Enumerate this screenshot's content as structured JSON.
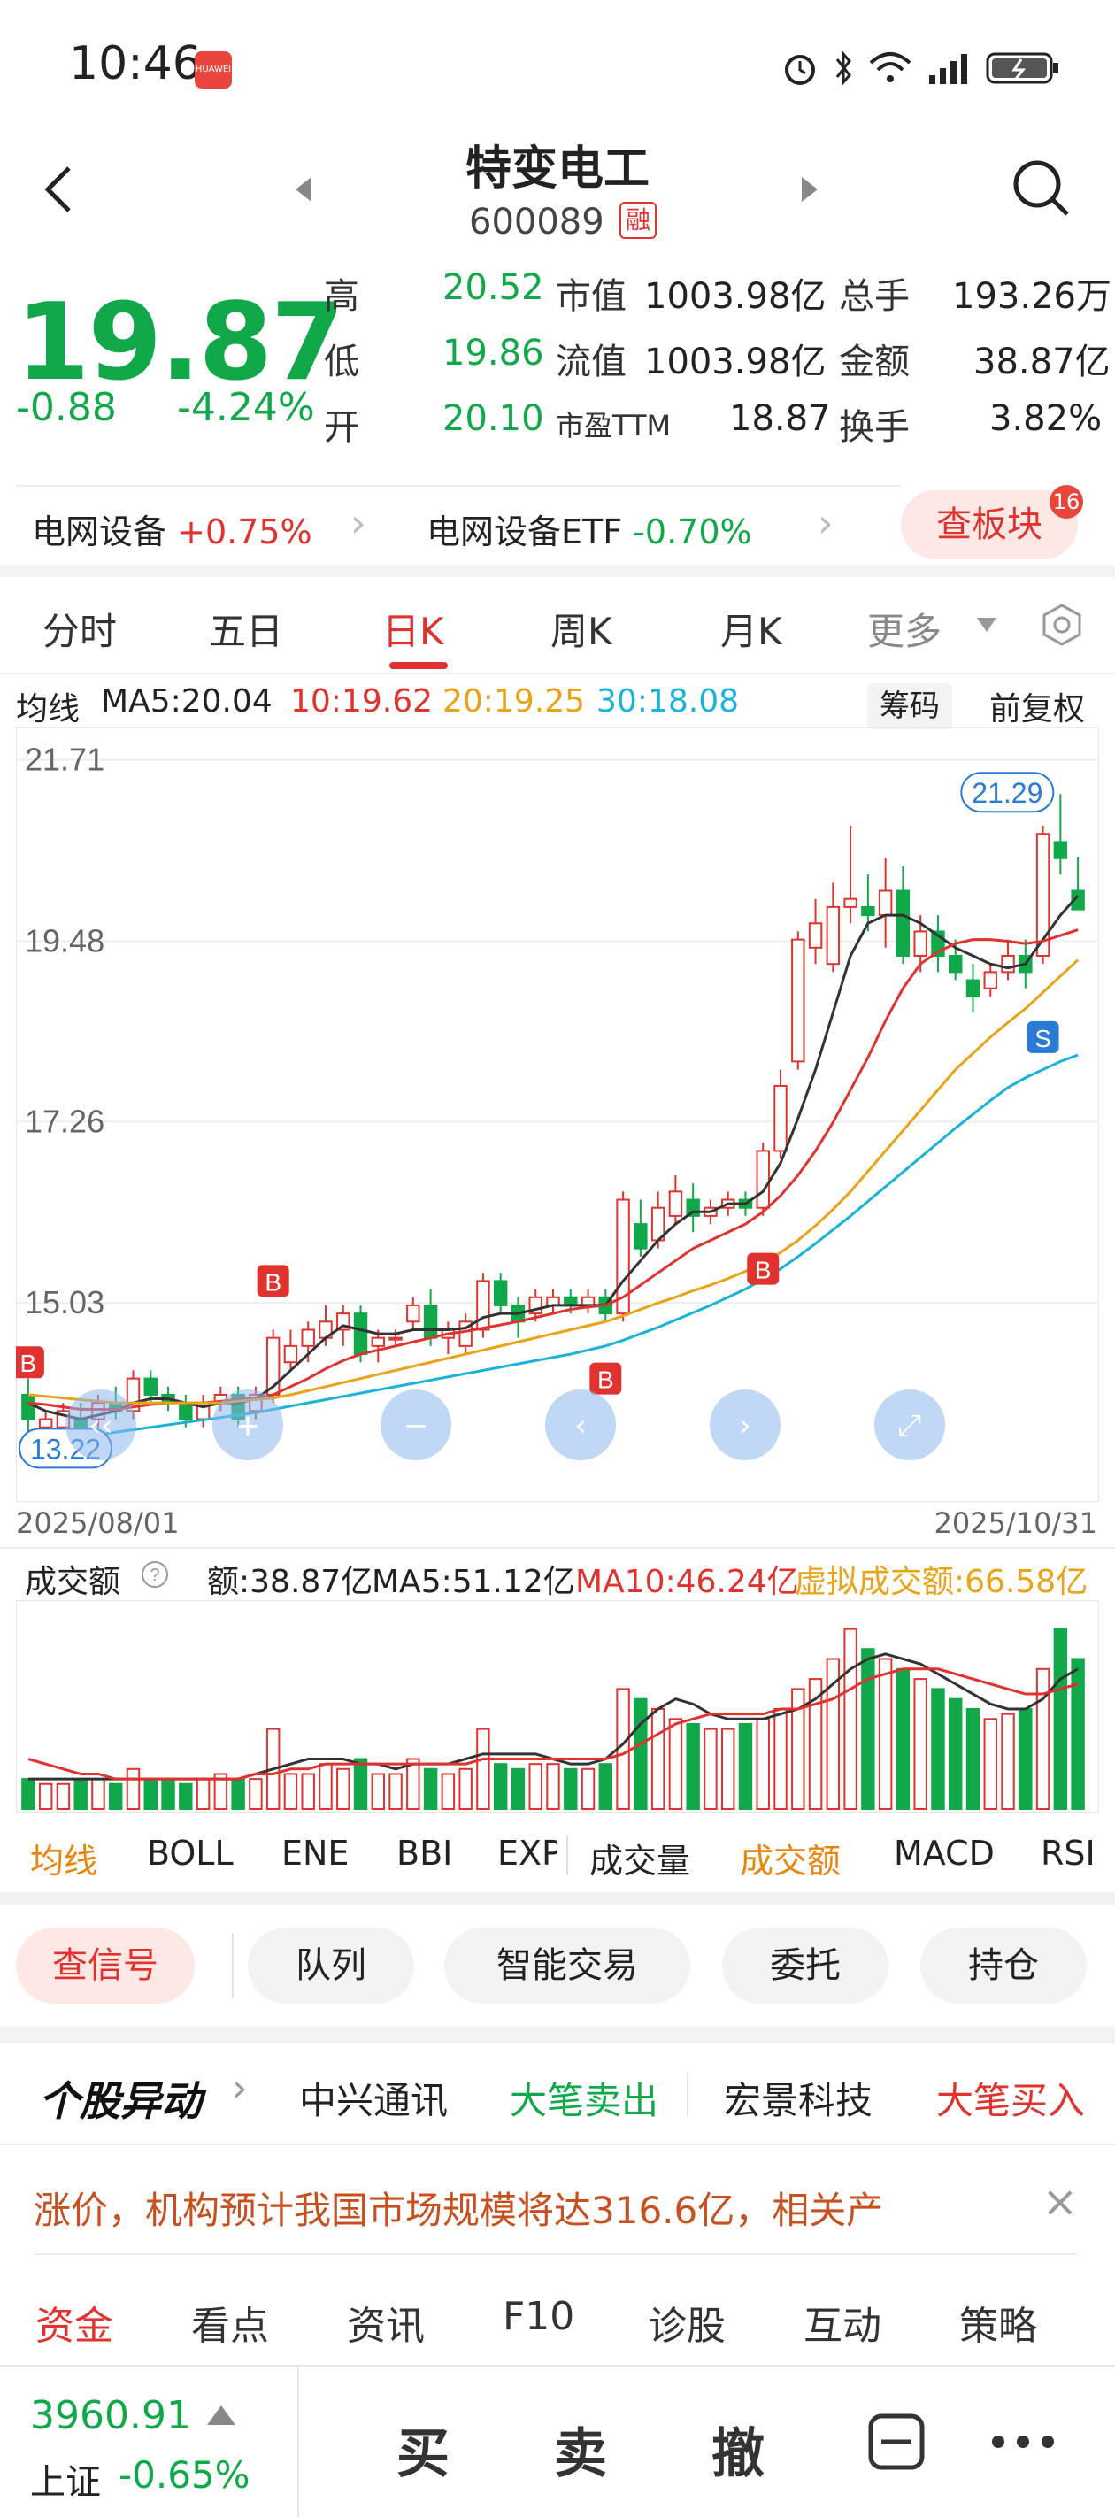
{
  "status_bar": {
    "time": "10:46",
    "badge": "HUAWEI"
  },
  "header": {
    "title": "特变电工",
    "code": "600089",
    "tag": "融"
  },
  "quote": {
    "price": "19.87",
    "change": "-0.88",
    "change_pct": "-4.24%",
    "rows": [
      [
        {
          "k": "高",
          "v": "20.52"
        },
        {
          "k": "市值",
          "v": "1003.98亿"
        },
        {
          "k": "总手",
          "v": "193.26万"
        }
      ],
      [
        {
          "k": "低",
          "v": "19.86"
        },
        {
          "k": "流值",
          "v": "1003.98亿"
        },
        {
          "k": "金额",
          "v": "38.87亿"
        }
      ],
      [
        {
          "k": "开",
          "v": "20.10"
        },
        {
          "k": "市盈TTM",
          "v": "18.87"
        },
        {
          "k": "换手",
          "v": "3.82%"
        }
      ]
    ]
  },
  "sectors": [
    {
      "name": "电网设备",
      "chg": "+0.75%"
    },
    {
      "name": "电网设备ETF",
      "chg": "-0.70%"
    }
  ],
  "board_button": "查板块",
  "board_badge": "16",
  "period_tabs": [
    "分时",
    "五日",
    "日K",
    "周K",
    "月K",
    "更多"
  ],
  "ma_legend": {
    "label": "均线",
    "ma5": "MA5:20.04",
    "ma10": "10:19.62",
    "ma20": "20:19.25",
    "ma30": "30:18.08",
    "btn_chip": "筹码",
    "btn_adjust": "前复权"
  },
  "chart_data": {
    "type": "candlestick",
    "y_ticks": [
      "21.71",
      "19.48",
      "17.26",
      "15.03"
    ],
    "ylim": [
      12.8,
      22.0
    ],
    "high_label": "21.29",
    "low_label": "13.22",
    "date_start": "2025/08/01",
    "date_end": "2025/10/31",
    "markers": [
      "B",
      "B",
      "B",
      "B",
      "S"
    ],
    "candles": [
      {
        "o": 13.9,
        "c": 13.6,
        "h": 14.1,
        "l": 13.3
      },
      {
        "o": 13.5,
        "c": 13.6,
        "h": 13.7,
        "l": 13.4
      },
      {
        "o": 13.5,
        "c": 13.7,
        "h": 13.8,
        "l": 13.4
      },
      {
        "o": 13.6,
        "c": 13.5,
        "h": 13.8,
        "l": 13.3
      },
      {
        "o": 13.6,
        "c": 13.8,
        "h": 13.9,
        "l": 13.5
      },
      {
        "o": 13.8,
        "c": 13.7,
        "h": 14.0,
        "l": 13.6
      },
      {
        "o": 13.7,
        "c": 14.1,
        "h": 14.2,
        "l": 13.6
      },
      {
        "o": 14.1,
        "c": 13.9,
        "h": 14.2,
        "l": 13.8
      },
      {
        "o": 13.9,
        "c": 13.8,
        "h": 14.0,
        "l": 13.7
      },
      {
        "o": 13.8,
        "c": 13.6,
        "h": 13.9,
        "l": 13.5
      },
      {
        "o": 13.6,
        "c": 13.8,
        "h": 13.9,
        "l": 13.5
      },
      {
        "o": 13.8,
        "c": 13.9,
        "h": 14.0,
        "l": 13.7
      },
      {
        "o": 13.9,
        "c": 13.6,
        "h": 14.0,
        "l": 13.5
      },
      {
        "o": 13.7,
        "c": 13.9,
        "h": 14.0,
        "l": 13.6
      },
      {
        "o": 13.9,
        "c": 14.6,
        "h": 14.7,
        "l": 13.8
      },
      {
        "o": 14.3,
        "c": 14.5,
        "h": 14.7,
        "l": 14.2
      },
      {
        "o": 14.5,
        "c": 14.7,
        "h": 14.8,
        "l": 14.3
      },
      {
        "o": 14.6,
        "c": 14.8,
        "h": 15.0,
        "l": 14.5
      },
      {
        "o": 14.7,
        "c": 14.9,
        "h": 15.0,
        "l": 14.5
      },
      {
        "o": 14.9,
        "c": 14.4,
        "h": 15.0,
        "l": 14.3
      },
      {
        "o": 14.5,
        "c": 14.6,
        "h": 14.7,
        "l": 14.3
      },
      {
        "o": 14.6,
        "c": 14.6,
        "h": 14.7,
        "l": 14.5
      },
      {
        "o": 14.8,
        "c": 15.0,
        "h": 15.1,
        "l": 14.7
      },
      {
        "o": 15.0,
        "c": 14.6,
        "h": 15.2,
        "l": 14.5
      },
      {
        "o": 14.6,
        "c": 14.7,
        "h": 14.8,
        "l": 14.4
      },
      {
        "o": 14.5,
        "c": 14.8,
        "h": 14.9,
        "l": 14.4
      },
      {
        "o": 14.7,
        "c": 15.3,
        "h": 15.4,
        "l": 14.6
      },
      {
        "o": 15.3,
        "c": 15.0,
        "h": 15.4,
        "l": 14.9
      },
      {
        "o": 15.0,
        "c": 14.8,
        "h": 15.1,
        "l": 14.6
      },
      {
        "o": 14.9,
        "c": 15.1,
        "h": 15.2,
        "l": 14.8
      },
      {
        "o": 15.0,
        "c": 15.1,
        "h": 15.2,
        "l": 14.9
      },
      {
        "o": 15.1,
        "c": 15.0,
        "h": 15.2,
        "l": 14.9
      },
      {
        "o": 15.0,
        "c": 15.1,
        "h": 15.2,
        "l": 14.9
      },
      {
        "o": 15.1,
        "c": 14.9,
        "h": 15.2,
        "l": 14.8
      },
      {
        "o": 14.9,
        "c": 16.3,
        "h": 16.4,
        "l": 14.8
      },
      {
        "o": 16.0,
        "c": 15.7,
        "h": 16.3,
        "l": 15.6
      },
      {
        "o": 15.8,
        "c": 16.2,
        "h": 16.4,
        "l": 15.7
      },
      {
        "o": 16.1,
        "c": 16.4,
        "h": 16.6,
        "l": 16.0
      },
      {
        "o": 16.3,
        "c": 16.1,
        "h": 16.5,
        "l": 15.9
      },
      {
        "o": 16.1,
        "c": 16.2,
        "h": 16.3,
        "l": 16.0
      },
      {
        "o": 16.2,
        "c": 16.3,
        "h": 16.4,
        "l": 16.1
      },
      {
        "o": 16.3,
        "c": 16.2,
        "h": 16.4,
        "l": 16.1
      },
      {
        "o": 16.2,
        "c": 16.9,
        "h": 17.0,
        "l": 16.1
      },
      {
        "o": 16.9,
        "c": 17.7,
        "h": 17.9,
        "l": 16.8
      },
      {
        "o": 18.0,
        "c": 19.5,
        "h": 19.6,
        "l": 17.9
      },
      {
        "o": 19.4,
        "c": 19.7,
        "h": 20.0,
        "l": 19.2
      },
      {
        "o": 19.2,
        "c": 19.9,
        "h": 20.2,
        "l": 19.1
      },
      {
        "o": 19.9,
        "c": 20.0,
        "h": 20.9,
        "l": 19.7
      },
      {
        "o": 19.9,
        "c": 19.8,
        "h": 20.3,
        "l": 19.6
      },
      {
        "o": 19.8,
        "c": 20.1,
        "h": 20.5,
        "l": 19.4
      },
      {
        "o": 20.1,
        "c": 19.3,
        "h": 20.4,
        "l": 19.2
      },
      {
        "o": 19.3,
        "c": 19.6,
        "h": 19.8,
        "l": 19.1
      },
      {
        "o": 19.6,
        "c": 19.3,
        "h": 19.8,
        "l": 19.1
      },
      {
        "o": 19.3,
        "c": 19.1,
        "h": 19.5,
        "l": 19.0
      },
      {
        "o": 19.0,
        "c": 18.8,
        "h": 19.2,
        "l": 18.6
      },
      {
        "o": 18.9,
        "c": 19.1,
        "h": 19.2,
        "l": 18.8
      },
      {
        "o": 19.1,
        "c": 19.3,
        "h": 19.5,
        "l": 19.0
      },
      {
        "o": 19.3,
        "c": 19.1,
        "h": 19.5,
        "l": 18.9
      },
      {
        "o": 19.3,
        "c": 20.8,
        "h": 20.9,
        "l": 19.2
      },
      {
        "o": 20.7,
        "c": 20.5,
        "h": 21.29,
        "l": 20.3
      },
      {
        "o": 20.1,
        "c": 19.87,
        "h": 20.52,
        "l": 19.86
      }
    ],
    "ma5": [
      13.8,
      13.7,
      13.65,
      13.6,
      13.65,
      13.7,
      13.8,
      13.85,
      13.85,
      13.8,
      13.75,
      13.8,
      13.8,
      13.85,
      14.0,
      14.2,
      14.4,
      14.6,
      14.75,
      14.7,
      14.65,
      14.65,
      14.7,
      14.7,
      14.7,
      14.72,
      14.85,
      14.9,
      14.9,
      14.95,
      15.0,
      15.0,
      15.0,
      15.0,
      15.3,
      15.55,
      15.8,
      16.0,
      16.15,
      16.15,
      16.25,
      16.25,
      16.4,
      16.75,
      17.3,
      17.9,
      18.6,
      19.3,
      19.7,
      19.8,
      19.8,
      19.7,
      19.55,
      19.4,
      19.3,
      19.2,
      19.15,
      19.2,
      19.5,
      19.8,
      20.04
    ],
    "ma10": [
      13.8,
      13.78,
      13.75,
      13.72,
      13.72,
      13.72,
      13.75,
      13.78,
      13.8,
      13.8,
      13.8,
      13.82,
      13.84,
      13.86,
      13.9,
      14.0,
      14.1,
      14.22,
      14.32,
      14.4,
      14.45,
      14.5,
      14.55,
      14.6,
      14.65,
      14.68,
      14.72,
      14.76,
      14.8,
      14.85,
      14.9,
      14.95,
      14.98,
      15.0,
      15.1,
      15.25,
      15.4,
      15.55,
      15.7,
      15.8,
      15.9,
      16.0,
      16.15,
      16.35,
      16.6,
      16.9,
      17.25,
      17.65,
      18.05,
      18.5,
      18.9,
      19.2,
      19.35,
      19.45,
      19.5,
      19.5,
      19.48,
      19.45,
      19.48,
      19.55,
      19.62
    ],
    "ma20": [
      13.9,
      13.88,
      13.86,
      13.84,
      13.82,
      13.8,
      13.8,
      13.8,
      13.8,
      13.8,
      13.8,
      13.8,
      13.82,
      13.84,
      13.86,
      13.9,
      13.95,
      14.0,
      14.05,
      14.1,
      14.15,
      14.2,
      14.25,
      14.3,
      14.35,
      14.4,
      14.45,
      14.5,
      14.55,
      14.6,
      14.65,
      14.7,
      14.75,
      14.8,
      14.87,
      14.95,
      15.03,
      15.1,
      15.18,
      15.25,
      15.33,
      15.42,
      15.52,
      15.65,
      15.8,
      15.98,
      16.18,
      16.4,
      16.65,
      16.9,
      17.15,
      17.4,
      17.65,
      17.9,
      18.1,
      18.3,
      18.48,
      18.65,
      18.85,
      19.05,
      19.25
    ],
    "ma30": [
      13.3,
      13.32,
      13.35,
      13.38,
      13.41,
      13.44,
      13.47,
      13.5,
      13.53,
      13.56,
      13.59,
      13.62,
      13.65,
      13.68,
      13.72,
      13.76,
      13.8,
      13.84,
      13.88,
      13.92,
      13.96,
      14.0,
      14.04,
      14.08,
      14.12,
      14.16,
      14.2,
      14.24,
      14.28,
      14.32,
      14.36,
      14.4,
      14.45,
      14.5,
      14.57,
      14.65,
      14.73,
      14.82,
      14.91,
      15.0,
      15.1,
      15.2,
      15.32,
      15.45,
      15.6,
      15.76,
      15.93,
      16.1,
      16.28,
      16.46,
      16.64,
      16.82,
      17.0,
      17.18,
      17.35,
      17.52,
      17.68,
      17.8,
      17.9,
      18.0,
      18.08
    ]
  },
  "volume": {
    "label": "成交额",
    "amount": "额:38.87亿",
    "ma5": "MA5:51.12亿",
    "ma10": "MA10:46.24亿",
    "virtual": "虚拟成交额:66.58亿",
    "values": [
      6,
      5,
      5,
      6,
      6,
      5,
      8,
      6,
      6,
      5,
      6,
      7,
      6,
      6,
      16,
      7,
      7,
      9,
      8,
      10,
      7,
      7,
      10,
      8,
      7,
      8,
      16,
      9,
      8,
      9,
      9,
      8,
      8,
      9,
      24,
      22,
      20,
      18,
      17,
      16,
      16,
      17,
      18,
      20,
      24,
      26,
      30,
      36,
      32,
      30,
      28,
      26,
      24,
      22,
      20,
      18,
      19,
      20,
      28,
      36,
      30
    ],
    "ma5_line": [
      6,
      6,
      6,
      6,
      6,
      6,
      6,
      6,
      6,
      6,
      6,
      6,
      6,
      7,
      8,
      9,
      10,
      10,
      10,
      9,
      9,
      8,
      9,
      9,
      9,
      10,
      11,
      11,
      11,
      11,
      10,
      9,
      9,
      10,
      13,
      17,
      20,
      22,
      21,
      19,
      18,
      18,
      18,
      19,
      20,
      22,
      25,
      28,
      30,
      31,
      30,
      29,
      27,
      25,
      23,
      21,
      20,
      20,
      22,
      26,
      28
    ],
    "ma10_line": [
      10,
      9,
      8,
      7,
      7,
      6,
      6,
      6,
      6,
      6,
      6,
      6,
      6,
      7,
      7,
      8,
      8,
      9,
      9,
      9,
      9,
      9,
      9,
      9,
      9,
      9,
      10,
      10,
      10,
      10,
      10,
      10,
      10,
      10,
      11,
      13,
      15,
      17,
      18,
      19,
      19,
      19,
      19,
      20,
      20,
      21,
      22,
      24,
      26,
      27,
      28,
      28,
      28,
      27,
      26,
      25,
      24,
      23,
      23,
      24,
      25
    ]
  },
  "indicator_tabs": [
    "均线",
    "BOLL",
    "ENE",
    "BBI",
    "EXP",
    "成交量",
    "成交额",
    "MACD",
    "RSI"
  ],
  "actions": [
    "查信号",
    "队列",
    "智能交易",
    "委托",
    "持仓"
  ],
  "alert": {
    "title": "个股异动",
    "stock1": "中兴通讯",
    "action1": "大笔卖出",
    "stock2": "宏景科技",
    "action2": "大笔买入"
  },
  "news": "涨价，机构预计我国市场规模将达316.6亿，相关产",
  "bottom_tabs": [
    "资金",
    "看点",
    "资讯",
    "F10",
    "诊股",
    "互动",
    "策略"
  ],
  "footer": {
    "index_value": "3960.91",
    "index_name": "上证",
    "index_chg": "-0.65%",
    "buy": "买",
    "sell": "卖",
    "cancel": "撤"
  },
  "colors": {
    "up": "#e0332f",
    "down": "#11a84a",
    "ma5": "#333333",
    "ma10": "#e0332f",
    "ma20": "#e8a317",
    "ma30": "#1ab3d8"
  }
}
